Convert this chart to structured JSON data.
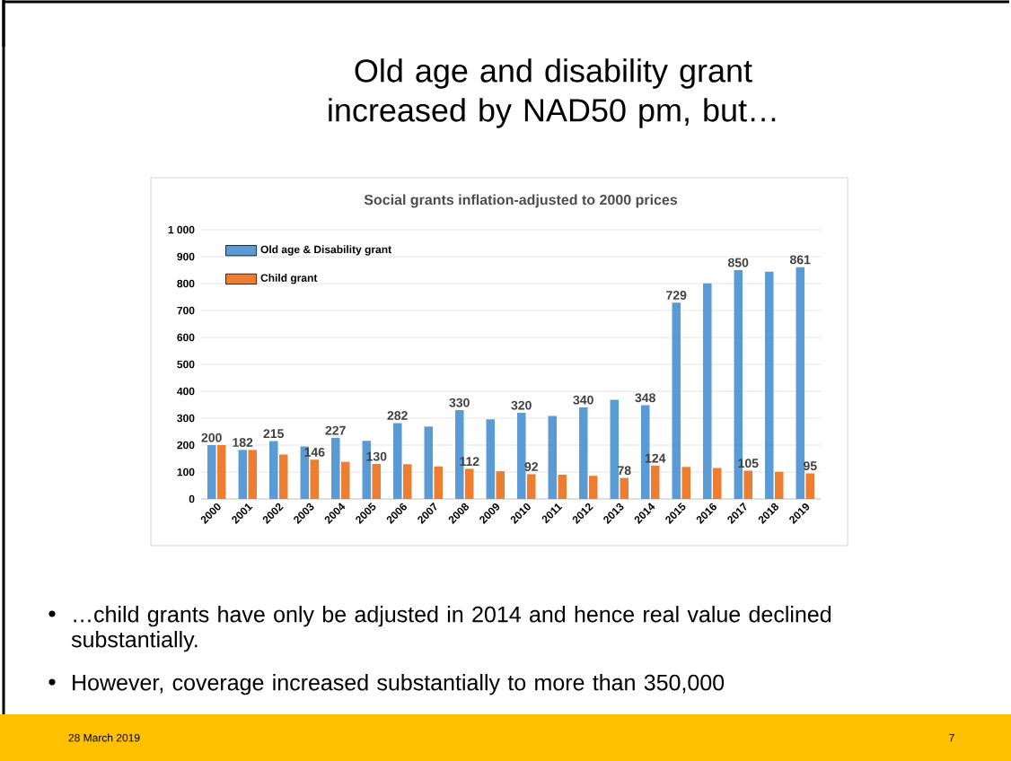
{
  "chart_data": {
    "type": "bar",
    "title": "Old age and disability grant increased by NAD50 pm, but…",
    "subtitle": "Social grants inflation-adjusted to 2000 prices",
    "categories": [
      "2000",
      "2001",
      "2002",
      "2003",
      "2004",
      "2005",
      "2006",
      "2007",
      "2008",
      "2009",
      "2010",
      "2011",
      "2012",
      "2013",
      "2014",
      "2015",
      "2016",
      "2017",
      "2018",
      "2019"
    ],
    "series": [
      {
        "name": "Old age & Disability grant",
        "color": "#5b9bd5",
        "values": [
          200,
          182,
          215,
          195,
          227,
          216,
          282,
          269,
          330,
          296,
          320,
          308,
          340,
          368,
          348,
          729,
          801,
          850,
          844,
          861
        ],
        "value_labels": [
          "200",
          "182",
          "215",
          null,
          "227",
          null,
          "282",
          null,
          "330",
          null,
          "320",
          null,
          "340",
          null,
          "348",
          "729",
          null,
          "850",
          null,
          "861"
        ]
      },
      {
        "name": "Child grant",
        "color": "#ed7d31",
        "values": [
          200,
          182,
          165,
          146,
          138,
          130,
          129,
          121,
          112,
          103,
          92,
          90,
          86,
          78,
          124,
          119,
          115,
          105,
          101,
          95
        ],
        "value_labels": [
          null,
          null,
          null,
          "146",
          null,
          "130",
          null,
          null,
          "112",
          null,
          "92",
          null,
          null,
          "78",
          "124",
          null,
          null,
          "105",
          null,
          "95"
        ]
      }
    ],
    "ylim": [
      0,
      1000
    ],
    "yticks": [
      0,
      100,
      200,
      300,
      400,
      500,
      600,
      700,
      800,
      900,
      {
        "value": 1000,
        "label": "1 000"
      }
    ],
    "grid": "y",
    "legend": "top left",
    "annotations": [
      "…child grants have only be adjusted in 2014 and hence real value declined substantially.",
      "However, coverage increased substantially to more than 350,000",
      "28 March 2019",
      "7"
    ]
  }
}
